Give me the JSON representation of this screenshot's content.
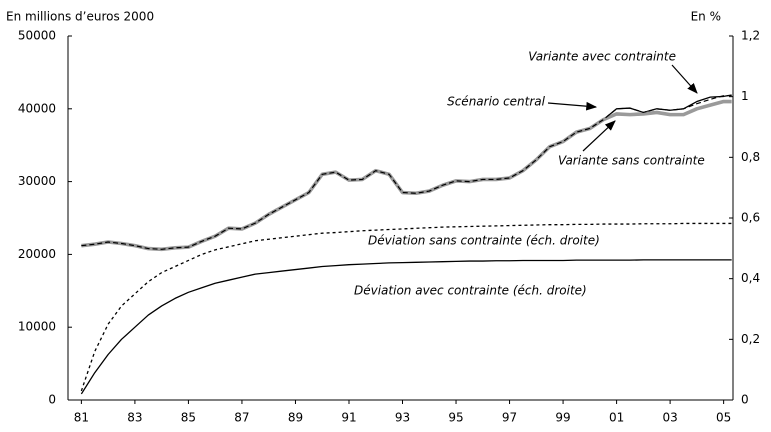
{
  "chart_data": {
    "type": "line",
    "y_label": "En millions d’euros 2000",
    "y2_label": "En %",
    "annotations": [
      "Variante avec contrainte",
      "Scénario central",
      "Variante sans contrainte",
      "Déviation sans contrainte (éch. droite)",
      "Déviation avec contrainte (éch. droite)"
    ],
    "x": [
      1981,
      1981.5,
      1982,
      1982.5,
      1983,
      1983.5,
      1984,
      1984.5,
      1985,
      1985.5,
      1986,
      1986.5,
      1987,
      1987.5,
      1988,
      1988.5,
      1989,
      1989.5,
      1990,
      1990.5,
      1991,
      1991.5,
      1992,
      1992.5,
      1993,
      1993.5,
      1994,
      1994.5,
      1995,
      1995.5,
      1996,
      1996.5,
      1997,
      1997.5,
      1998,
      1998.5,
      1999,
      1999.5,
      2000,
      2000.5,
      2001,
      2001.5,
      2002,
      2002.5,
      2003,
      2003.5,
      2004,
      2004.5,
      2005,
      2005.3
    ],
    "series": [
      {
        "name": "Variante avec contrainte",
        "color": "#000000",
        "line": "solid",
        "values": [
          21200,
          21400,
          21700,
          21500,
          21200,
          20800,
          20700,
          20900,
          21000,
          21800,
          22500,
          23600,
          23500,
          24300,
          25500,
          26500,
          27500,
          28500,
          31000,
          31300,
          30200,
          30300,
          31500,
          31000,
          28500,
          28400,
          28700,
          29500,
          30100,
          30000,
          30300,
          30300,
          30500,
          31500,
          33000,
          34800,
          35500,
          36800,
          37300,
          38500,
          40000,
          40100,
          39500,
          40000,
          39800,
          40000,
          41000,
          41600,
          41700,
          41900
        ]
      },
      {
        "name": "Variante sans contrainte",
        "color": "#9a9a9a",
        "line": "thick",
        "values": [
          21200,
          21400,
          21700,
          21500,
          21200,
          20800,
          20700,
          20900,
          21000,
          21800,
          22500,
          23600,
          23500,
          24300,
          25500,
          26500,
          27500,
          28500,
          31000,
          31300,
          30200,
          30300,
          31500,
          31000,
          28500,
          28400,
          28700,
          29500,
          30100,
          30000,
          30300,
          30300,
          30500,
          31500,
          33000,
          34800,
          35500,
          36800,
          37300,
          38500,
          39300,
          39200,
          39300,
          39500,
          39200,
          39200,
          40000,
          40500,
          41000,
          41000
        ]
      },
      {
        "name": "Scénario central",
        "color": "#000000",
        "line": "dashed",
        "values": [
          21200,
          21400,
          21700,
          21500,
          21200,
          20800,
          20700,
          20900,
          21000,
          21800,
          22500,
          23600,
          23500,
          24300,
          25500,
          26500,
          27500,
          28500,
          31000,
          31300,
          30200,
          30300,
          31500,
          31000,
          28500,
          28400,
          28700,
          29500,
          30100,
          30000,
          30300,
          30300,
          30500,
          31500,
          33000,
          34800,
          35500,
          36800,
          37300,
          38500,
          40000,
          40100,
          39500,
          40000,
          39800,
          40000,
          40700,
          41300,
          41800,
          41800
        ]
      },
      {
        "name": "Déviation sans contrainte (éch. droite)",
        "color": "#000000",
        "line": "dotted",
        "axis": "y2",
        "values": [
          0.03,
          0.16,
          0.25,
          0.31,
          0.35,
          0.39,
          0.42,
          0.44,
          0.46,
          0.48,
          0.495,
          0.505,
          0.515,
          0.525,
          0.53,
          0.535,
          0.54,
          0.545,
          0.55,
          0.552,
          0.555,
          0.558,
          0.56,
          0.562,
          0.564,
          0.566,
          0.568,
          0.57,
          0.571,
          0.572,
          0.573,
          0.574,
          0.575,
          0.576,
          0.577,
          0.578,
          0.578,
          0.579,
          0.579,
          0.58,
          0.58,
          0.58,
          0.581,
          0.581,
          0.581,
          0.582,
          0.582,
          0.582,
          0.582,
          0.582
        ]
      },
      {
        "name": "Déviation avec contrainte (éch. droite)",
        "color": "#000000",
        "line": "solid",
        "axis": "y2",
        "values": [
          0.02,
          0.09,
          0.15,
          0.2,
          0.24,
          0.28,
          0.31,
          0.335,
          0.355,
          0.37,
          0.385,
          0.395,
          0.405,
          0.415,
          0.42,
          0.425,
          0.43,
          0.435,
          0.44,
          0.443,
          0.446,
          0.448,
          0.45,
          0.452,
          0.453,
          0.454,
          0.455,
          0.456,
          0.457,
          0.458,
          0.458,
          0.459,
          0.459,
          0.46,
          0.46,
          0.46,
          0.46,
          0.461,
          0.461,
          0.461,
          0.461,
          0.461,
          0.462,
          0.462,
          0.462,
          0.462,
          0.462,
          0.462,
          0.462,
          0.462
        ]
      }
    ],
    "xlim": [
      1980.5,
      2005.35
    ],
    "xticks": [
      {
        "value": 1981,
        "label": "81"
      },
      {
        "value": 1983,
        "label": "83"
      },
      {
        "value": 1985,
        "label": "85"
      },
      {
        "value": 1987,
        "label": "87"
      },
      {
        "value": 1989,
        "label": "89"
      },
      {
        "value": 1991,
        "label": "91"
      },
      {
        "value": 1993,
        "label": "93"
      },
      {
        "value": 1995,
        "label": "95"
      },
      {
        "value": 1997,
        "label": "97"
      },
      {
        "value": 1999,
        "label": "99"
      },
      {
        "value": 2001,
        "label": "01"
      },
      {
        "value": 2003,
        "label": "03"
      },
      {
        "value": 2005,
        "label": "05"
      }
    ],
    "ylim": [
      0,
      50000
    ],
    "yticks": [
      0,
      10000,
      20000,
      30000,
      40000,
      50000
    ],
    "y2lim": [
      0,
      1.2
    ],
    "y2ticks": [
      0,
      {
        "value": 0.2,
        "label": "0,2"
      },
      {
        "value": 0.4,
        "label": "0,4"
      },
      {
        "value": 0.6,
        "label": "0,6"
      },
      {
        "value": 0.8,
        "label": "0,8"
      },
      1,
      {
        "value": 1.2,
        "label": "1,2"
      }
    ],
    "grid": false,
    "legend": false
  }
}
